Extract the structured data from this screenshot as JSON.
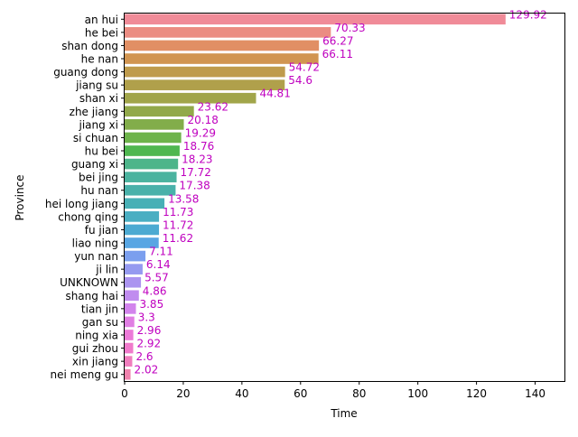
{
  "chart_data": {
    "type": "bar",
    "orientation": "horizontal",
    "title": "",
    "xlabel": "Time",
    "ylabel": "Province",
    "xlim": [
      0,
      150
    ],
    "xticks": [
      0,
      20,
      40,
      60,
      80,
      100,
      120,
      140
    ],
    "grid": false,
    "legend": "none",
    "label_color": "#bf00bf",
    "categories": [
      "an hui",
      "he bei",
      "shan dong",
      "he nan",
      "guang dong",
      "jiang su",
      "shan xi",
      "zhe jiang",
      "jiang xi",
      "si chuan",
      "hu bei",
      "guang xi",
      "bei jing",
      "hu nan",
      "hei long jiang",
      "chong qing",
      "fu jian",
      "liao ning",
      "yun nan",
      "ji lin",
      "UNKNOWN",
      "shang hai",
      "tian jin",
      "gan su",
      "ning xia",
      "gui zhou",
      "xin jiang",
      "nei meng gu"
    ],
    "values": [
      129.92,
      70.33,
      66.27,
      66.11,
      54.72,
      54.6,
      44.81,
      23.62,
      20.18,
      19.29,
      18.76,
      18.23,
      17.72,
      17.38,
      13.58,
      11.73,
      11.72,
      11.62,
      7.11,
      6.14,
      5.57,
      4.86,
      3.85,
      3.3,
      2.96,
      2.92,
      2.6,
      2.02
    ],
    "value_labels": [
      "129.92",
      "70.33",
      "66.27",
      "66.11",
      "54.72",
      "54.6",
      "44.81",
      "23.62",
      "20.18",
      "19.29",
      "18.76",
      "18.23",
      "17.72",
      "17.38",
      "13.58",
      "11.73",
      "11.72",
      "11.62",
      "7.11",
      "6.14",
      "5.57",
      "4.86",
      "3.85",
      "3.3",
      "2.96",
      "2.92",
      "2.6",
      "2.02"
    ],
    "colors": [
      "#f08b98",
      "#eb8c82",
      "#e18f64",
      "#d19551",
      "#bf9b4c",
      "#b0a04b",
      "#a1a54a",
      "#92a94a",
      "#82ad4a",
      "#6db34b",
      "#4fb750",
      "#4db58a",
      "#4bb39f",
      "#49b1aa",
      "#48b0b6",
      "#4aaec2",
      "#4caad2",
      "#58a6e3",
      "#7b9fee",
      "#959af0",
      "#ab94f0",
      "#c08cef",
      "#d284ec",
      "#e07ee3",
      "#ec7ad8",
      "#f07acb",
      "#f07dbd",
      "#ef82ad"
    ]
  }
}
